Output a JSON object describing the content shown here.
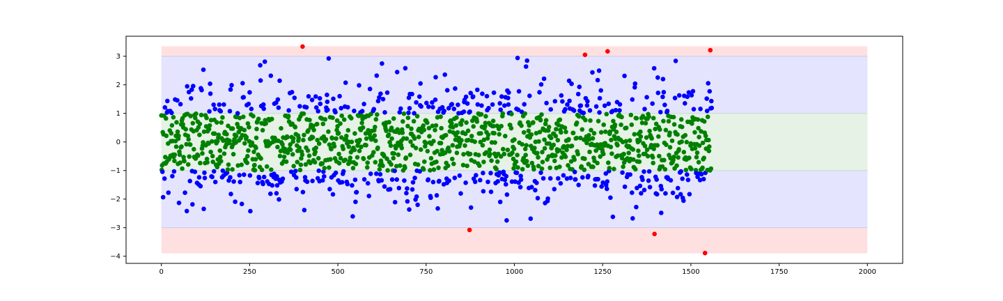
{
  "chart_data": {
    "type": "scatter",
    "title": "",
    "xlabel": "",
    "ylabel": "",
    "xlim": [
      -100,
      2100
    ],
    "ylim": [
      -4.25,
      3.7
    ],
    "grid": false,
    "legend": "none",
    "x_ticks": [
      0,
      250,
      500,
      750,
      1000,
      1250,
      1500,
      1750,
      2000
    ],
    "y_ticks": [
      -4,
      -3,
      -2,
      -1,
      0,
      1,
      2,
      3
    ],
    "bands": [
      {
        "zone": "outer",
        "y0": -3.9,
        "y1": 3.35,
        "x0": 0,
        "x1": 2000,
        "color": "#ffe0e0"
      },
      {
        "zone": "2-3 sigma",
        "y0": -3.0,
        "y1": 3.0,
        "x0": 0,
        "x1": 2000,
        "color": "#e4e4ff"
      },
      {
        "zone": "within 1 sigma",
        "y0": -1.0,
        "y1": 1.0,
        "x0": 0,
        "x1": 2000,
        "color": "#e5f2e5"
      }
    ],
    "n_points": 1560,
    "point_colors": {
      "within_1": "#008000",
      "within_3": "#0000ff",
      "outlier": "#ff0000"
    },
    "outliers": [
      {
        "x": 400,
        "y": 3.34
      },
      {
        "x": 873,
        "y": -3.08
      },
      {
        "x": 1200,
        "y": 3.05
      },
      {
        "x": 1264,
        "y": 3.17
      },
      {
        "x": 1397,
        "y": -3.22
      },
      {
        "x": 1540,
        "y": -3.89
      },
      {
        "x": 1555,
        "y": 3.21
      }
    ]
  }
}
